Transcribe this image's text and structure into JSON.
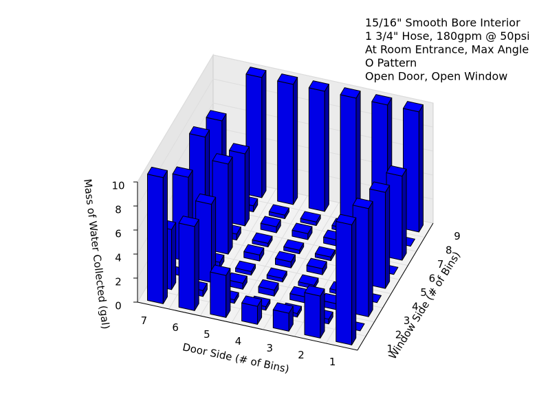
{
  "chart_data": {
    "type": "bar3d",
    "annotations": [
      "15/16\" Smooth Bore Interior",
      "1 3/4\" Hose, 180gpm @ 50psi",
      "At Room Entrance, Max Angle",
      "O Pattern",
      "Open Door, Open Window"
    ],
    "xlabel": "Door Side (# of Bins)",
    "ylabel": "Window Side (# of Bins)",
    "zlabel": "Mass of Water Collected (gal)",
    "x": [
      "1",
      "2",
      "3",
      "4",
      "5",
      "6",
      "7"
    ],
    "y": [
      "1",
      "2",
      "3",
      "4",
      "5",
      "6",
      "7",
      "8",
      "9"
    ],
    "values": [
      [
        10,
        0,
        9,
        0,
        8,
        0,
        7,
        0,
        10
      ],
      [
        3.5,
        0.4,
        0.5,
        0.3,
        0.5,
        0.4,
        0.6,
        0.5,
        10
      ],
      [
        1.5,
        0.3,
        0.5,
        0.3,
        0.5,
        0.3,
        0.5,
        0.3,
        10
      ],
      [
        1.5,
        0.3,
        0.5,
        0.3,
        0.5,
        0.3,
        0.5,
        0.3,
        10
      ],
      [
        3.5,
        0.3,
        0.5,
        0.3,
        0.5,
        0.3,
        0.5,
        0.3,
        10
      ],
      [
        7,
        0.5,
        6.5,
        0.5,
        7.5,
        0.5,
        6,
        0.5,
        10
      ],
      [
        10.5,
        5,
        0,
        7,
        0,
        8,
        0,
        7,
        0
      ]
    ],
    "color": "#0000ff",
    "zlim": [
      0,
      10
    ],
    "zticks": [
      0,
      2,
      4,
      6,
      8,
      10
    ],
    "grid": true
  }
}
